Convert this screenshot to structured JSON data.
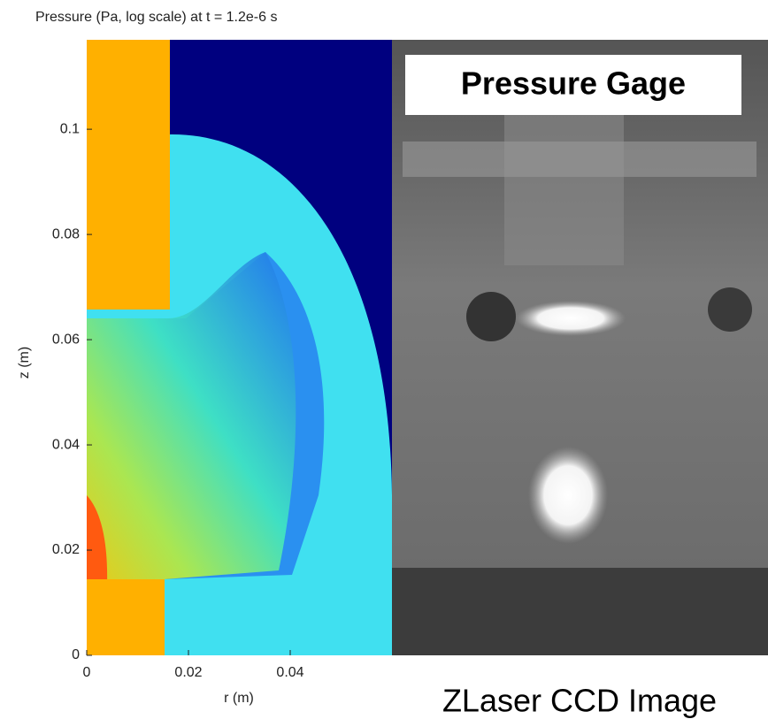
{
  "chart_data": {
    "type": "pseudocolor",
    "title": "Pressure (Pa, log scale) at t = 1.2e-6 s",
    "xlabel": "r (m)",
    "ylabel": "z (m)",
    "xlim": [
      0,
      0.06
    ],
    "ylim": [
      0,
      0.117
    ],
    "xticks": [
      0,
      0.02,
      0.04
    ],
    "yticks": [
      0,
      0.02,
      0.04,
      0.06,
      0.08,
      0.1
    ]
  },
  "photo": {
    "title": "Pressure Gage",
    "caption": "ZLaser CCD Image"
  }
}
